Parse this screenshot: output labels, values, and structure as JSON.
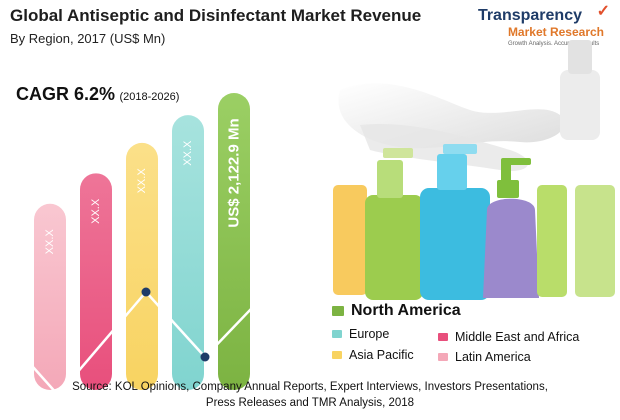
{
  "header": {
    "title": "Global Antiseptic and Disinfectant Market Revenue",
    "subtitle": "By Region, 2017 (US$ Mn)"
  },
  "brand": {
    "line1": "Transparency",
    "line2": "Market Research",
    "tagline": "Growth Analysis. Accurate Results"
  },
  "cagr": {
    "value": "CAGR 6.2%",
    "period": "(2018-2026)"
  },
  "colors": {
    "north_america": "#7cb342",
    "europe": "#80d4cf",
    "asia_pacific": "#f8d361",
    "middle_east_africa": "#e84f7c",
    "latin_america": "#f4a8b8"
  },
  "chart_data": {
    "type": "bar",
    "title": "Global Antiseptic and Disinfectant Market Revenue",
    "subtitle": "By Region, 2017 (US$ Mn)",
    "categories": [
      "Latin America",
      "Middle East and Africa",
      "Asia Pacific",
      "Europe",
      "North America"
    ],
    "bar_labels": [
      "XX.X",
      "XX.X",
      "XX.X",
      "XX.X",
      "US$ 2,122.9 Mn"
    ],
    "series": [
      {
        "values": [
          null,
          null,
          null,
          null,
          2122.9
        ]
      }
    ],
    "relative_heights": [
      0.6,
      0.71,
      0.82,
      0.92,
      1.0
    ],
    "legend": {
      "position": "bottom-right",
      "items": [
        "North America",
        "Europe",
        "Middle East and Africa",
        "Asia Pacific",
        "Latin America"
      ]
    }
  },
  "source": {
    "line1": "Source: KOL Opinions, Company Annual Reports, Expert Interviews, Investors Presentations,",
    "line2": "Press Releases and TMR Analysis, 2018"
  }
}
